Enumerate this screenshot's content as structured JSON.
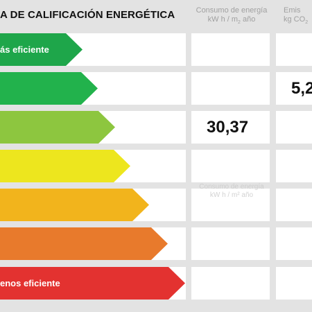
{
  "title": "A DE CALIFICACIÓN ENERGÉTICA",
  "columns": {
    "consumo": {
      "line1": "Consumo de energía",
      "line2": "kW h / m",
      "line2_sub": "2",
      "line2_tail": " año"
    },
    "emisiones": {
      "line1": "Emis",
      "line2": "kg CO",
      "line2_sub": "2"
    }
  },
  "ghost_header": {
    "line1": "Consumo de energía",
    "line2": "kW h / m² año"
  },
  "ratings": [
    {
      "label": "ás eficiente",
      "color": "#1ea64a",
      "fill": 0.21
    },
    {
      "label": "",
      "color": "#22b24c",
      "fill": 0.26
    },
    {
      "label": "",
      "color": "#8dc63f",
      "fill": 0.315
    },
    {
      "label": "",
      "color": "#ede61e",
      "fill": 0.365
    },
    {
      "label": "",
      "color": "#f2b41c",
      "fill": 0.425
    },
    {
      "label": "",
      "color": "#e87a2c",
      "fill": 0.485
    },
    {
      "label": "enos eficiente",
      "color": "#e33230",
      "fill": 0.54
    }
  ],
  "values": {
    "consumo": "30,37",
    "emisiones": "5,2"
  }
}
